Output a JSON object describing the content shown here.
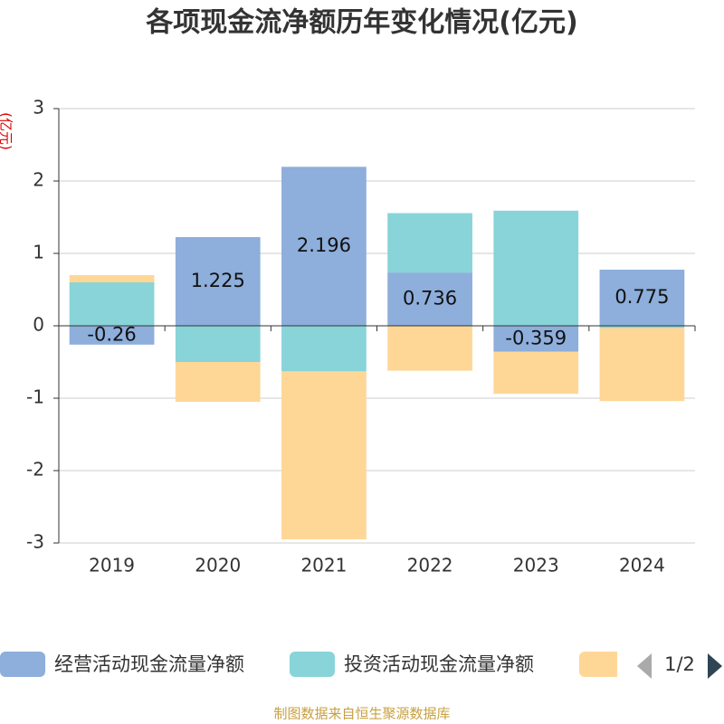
{
  "chart_data": {
    "type": "bar",
    "stacked": true,
    "title": "各项现金流净额历年变化情况(亿元)",
    "y_label": "(亿元)",
    "categories": [
      "2019",
      "2020",
      "2021",
      "2022",
      "2023",
      "2024"
    ],
    "series": [
      {
        "name": "经营活动现金流量净额",
        "color": "#8eaedb",
        "values": [
          -0.26,
          1.225,
          2.196,
          0.736,
          -0.359,
          0.775
        ],
        "show_labels": true
      },
      {
        "name": "投资活动现金流量净额",
        "color": "#88d4d8",
        "values": [
          0.6,
          -0.5,
          -0.63,
          0.82,
          1.59,
          -0.03
        ]
      },
      {
        "color": "#fed797",
        "values": [
          0.1,
          -0.55,
          -2.32,
          -0.62,
          -0.58,
          -1.01
        ]
      }
    ],
    "ylim": [
      -3,
      3
    ],
    "yticks": [
      -3,
      -2,
      -1,
      0,
      1,
      2,
      3
    ],
    "grid": true,
    "legend_page": "1/2",
    "source": "制图数据来自恒生聚源数据库"
  }
}
